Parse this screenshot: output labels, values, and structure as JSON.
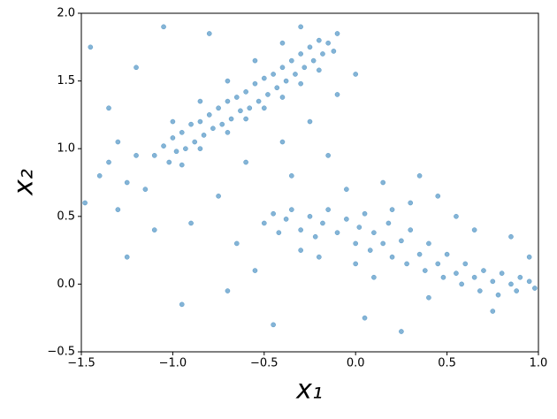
{
  "chart_data": {
    "type": "scatter",
    "xlabel": "x₁",
    "ylabel": "x₂",
    "color": "#1f77b4",
    "xlim": [
      -1.5,
      1.0
    ],
    "xticks": [
      {
        "value": -1.5,
        "label": "−1.5"
      },
      {
        "value": -1.0,
        "label": "−1.0"
      },
      {
        "value": -0.5,
        "label": "−0.5"
      },
      {
        "value": 0.0,
        "label": "0.0"
      },
      {
        "value": 0.5,
        "label": "0.5"
      },
      {
        "value": 1.0,
        "label": "1.0"
      }
    ],
    "ylim": [
      -0.5,
      2.0
    ],
    "yticks": [
      {
        "value": -0.5,
        "label": "−0.5"
      },
      {
        "value": 0.0,
        "label": "0.0"
      },
      {
        "value": 0.5,
        "label": "0.5"
      },
      {
        "value": 1.0,
        "label": "1.0"
      },
      {
        "value": 1.5,
        "label": "1.5"
      },
      {
        "value": 2.0,
        "label": "2.0"
      }
    ],
    "x": [
      -1.1,
      -1.05,
      -1.02,
      -1.0,
      -0.98,
      -0.95,
      -0.93,
      -0.9,
      -0.88,
      -0.85,
      -0.83,
      -0.8,
      -0.78,
      -0.75,
      -0.73,
      -0.7,
      -0.68,
      -0.65,
      -0.63,
      -0.6,
      -0.58,
      -0.55,
      -0.53,
      -0.5,
      -0.48,
      -0.45,
      -0.43,
      -0.4,
      -0.38,
      -0.35,
      -0.33,
      -0.3,
      -0.28,
      -0.25,
      -0.23,
      -0.2,
      -0.18,
      -0.15,
      -0.12,
      -0.1,
      -0.95,
      -0.85,
      -0.7,
      -0.6,
      -0.5,
      -0.4,
      -0.3,
      -0.2,
      -1.0,
      -0.85,
      -0.7,
      -0.55,
      -0.4,
      -0.3,
      -0.5,
      -0.45,
      -0.42,
      -0.38,
      -0.35,
      -0.3,
      -0.25,
      -0.22,
      -0.18,
      -0.15,
      -0.1,
      -0.05,
      0.0,
      0.02,
      0.05,
      0.08,
      0.1,
      0.15,
      0.18,
      0.2,
      0.25,
      0.28,
      0.3,
      0.35,
      0.38,
      0.4,
      0.45,
      0.48,
      0.5,
      0.55,
      0.58,
      0.6,
      0.65,
      0.68,
      0.7,
      0.75,
      0.78,
      0.8,
      0.85,
      0.88,
      0.9,
      0.95,
      0.98,
      0.0,
      0.1,
      0.2,
      0.3,
      0.4,
      -0.3,
      -0.2,
      -1.45,
      -1.4,
      -1.35,
      -1.3,
      -1.25,
      -1.2,
      -1.15,
      -1.1,
      -1.05,
      -0.95,
      -0.9,
      -0.8,
      -0.75,
      -0.7,
      -0.65,
      -0.6,
      -0.55,
      -0.45,
      -0.4,
      -0.35,
      -0.25,
      -0.15,
      -0.1,
      -0.05,
      0.0,
      0.05,
      0.15,
      0.25,
      0.35,
      0.45,
      0.55,
      0.65,
      0.75,
      0.85,
      0.95,
      -1.48,
      -1.3,
      -1.2,
      -1.25,
      -1.35
    ],
    "values": [
      0.95,
      1.02,
      0.9,
      1.08,
      0.98,
      1.12,
      1.0,
      1.18,
      1.05,
      1.2,
      1.1,
      1.25,
      1.15,
      1.3,
      1.18,
      1.35,
      1.22,
      1.38,
      1.28,
      1.42,
      1.3,
      1.48,
      1.35,
      1.52,
      1.4,
      1.55,
      1.45,
      1.6,
      1.5,
      1.65,
      1.55,
      1.7,
      1.6,
      1.75,
      1.65,
      1.8,
      1.7,
      1.78,
      1.72,
      1.85,
      0.88,
      1.0,
      1.12,
      1.22,
      1.3,
      1.38,
      1.48,
      1.58,
      1.2,
      1.35,
      1.5,
      1.65,
      1.78,
      1.9,
      0.45,
      0.52,
      0.38,
      0.48,
      0.55,
      0.4,
      0.5,
      0.35,
      0.45,
      0.55,
      0.38,
      0.48,
      0.3,
      0.42,
      0.52,
      0.25,
      0.38,
      0.3,
      0.45,
      0.2,
      0.32,
      0.15,
      0.4,
      0.22,
      0.1,
      0.3,
      0.15,
      0.05,
      0.22,
      0.08,
      0.0,
      0.15,
      0.05,
      -0.05,
      0.1,
      0.02,
      -0.08,
      0.08,
      0.0,
      -0.05,
      0.05,
      0.02,
      -0.03,
      0.15,
      0.05,
      0.55,
      0.6,
      -0.1,
      0.25,
      0.2,
      1.75,
      0.8,
      1.3,
      0.55,
      0.2,
      1.6,
      0.7,
      0.4,
      1.9,
      -0.15,
      0.45,
      1.85,
      0.65,
      -0.05,
      0.3,
      0.9,
      0.1,
      -0.3,
      1.05,
      0.8,
      1.2,
      0.95,
      1.4,
      0.7,
      1.55,
      -0.25,
      0.75,
      -0.35,
      0.8,
      0.65,
      0.5,
      0.4,
      -0.2,
      0.35,
      0.2,
      0.6,
      1.05,
      0.95,
      0.75,
      0.9
    ]
  }
}
